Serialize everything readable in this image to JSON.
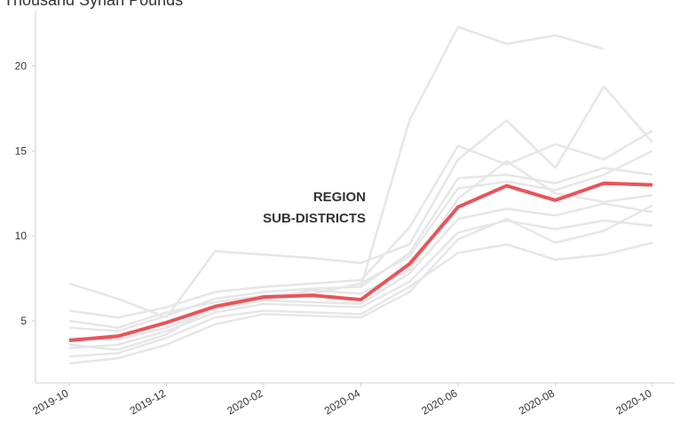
{
  "chart_data": {
    "type": "line",
    "title": "Thousand Syrian Pounds",
    "x": [
      "2019-10",
      "2019-11",
      "2019-12",
      "2020-01",
      "2020-02",
      "2020-03",
      "2020-04",
      "2020-05",
      "2020-06",
      "2020-07",
      "2020-08",
      "2020-09",
      "2020-10"
    ],
    "xticks": [
      "2019-10",
      "2019-12",
      "2020-02",
      "2020-04",
      "2020-06",
      "2020-08",
      "2020-10"
    ],
    "ylim": [
      1.35,
      23.1
    ],
    "yticks": [
      5,
      10,
      15,
      20
    ],
    "annotations": [
      {
        "text": "REGION",
        "color": "#e8545a"
      },
      {
        "text": "SUB-DISTRICTS",
        "color": "#d0d0d0"
      }
    ],
    "series": [
      {
        "name": "REGION",
        "color": "#e8545a",
        "values": [
          3.85,
          4.1,
          4.9,
          5.85,
          6.4,
          6.5,
          6.25,
          8.35,
          11.7,
          12.95,
          12.1,
          13.1,
          13.0
        ]
      },
      {
        "color": "#e6e6e6",
        "values": [
          null,
          null,
          null,
          null,
          null,
          null,
          7.0,
          16.8,
          22.3,
          21.3,
          21.8,
          21.0,
          null
        ]
      },
      {
        "color": "#e6e6e6",
        "values": [
          7.2,
          6.3,
          5.2,
          9.1,
          8.9,
          8.7,
          8.4,
          9.5,
          14.5,
          16.8,
          14.0,
          18.8,
          15.5
        ]
      },
      {
        "color": "#e6e6e6",
        "values": [
          5.6,
          5.2,
          5.8,
          6.7,
          7.0,
          7.2,
          7.4,
          10.5,
          15.3,
          14.2,
          15.4,
          14.5,
          16.2
        ]
      },
      {
        "color": "#e6e6e6",
        "values": [
          4.6,
          4.4,
          5.3,
          6.3,
          6.7,
          6.9,
          7.0,
          9.0,
          13.4,
          13.6,
          13.1,
          14.0,
          13.6
        ]
      },
      {
        "color": "#e6e6e6",
        "values": [
          4.0,
          3.9,
          4.6,
          5.7,
          6.2,
          6.1,
          6.0,
          7.8,
          11.0,
          11.6,
          11.2,
          11.9,
          11.4
        ]
      },
      {
        "color": "#e6e6e6",
        "values": [
          3.4,
          3.6,
          4.4,
          5.5,
          6.0,
          5.9,
          5.8,
          7.3,
          10.2,
          10.9,
          10.4,
          10.9,
          10.6
        ]
      },
      {
        "color": "#e6e6e6",
        "values": [
          2.9,
          3.1,
          4.0,
          5.2,
          5.6,
          5.5,
          5.4,
          7.0,
          9.0,
          9.5,
          8.6,
          8.9,
          9.6
        ]
      },
      {
        "color": "#e6e6e6",
        "values": [
          2.5,
          2.8,
          3.6,
          4.8,
          5.4,
          5.3,
          5.2,
          6.7,
          9.8,
          11.0,
          9.6,
          10.3,
          11.8
        ]
      },
      {
        "color": "#e6e6e6",
        "values": [
          5.0,
          4.6,
          5.5,
          6.1,
          6.5,
          6.6,
          7.2,
          8.8,
          12.8,
          13.2,
          12.7,
          13.6,
          15.0
        ]
      },
      {
        "color": "#e6e6e6",
        "values": [
          3.6,
          3.3,
          4.2,
          5.9,
          6.3,
          6.8,
          6.6,
          8.0,
          12.2,
          14.4,
          12.5,
          12.0,
          12.4
        ]
      }
    ]
  }
}
